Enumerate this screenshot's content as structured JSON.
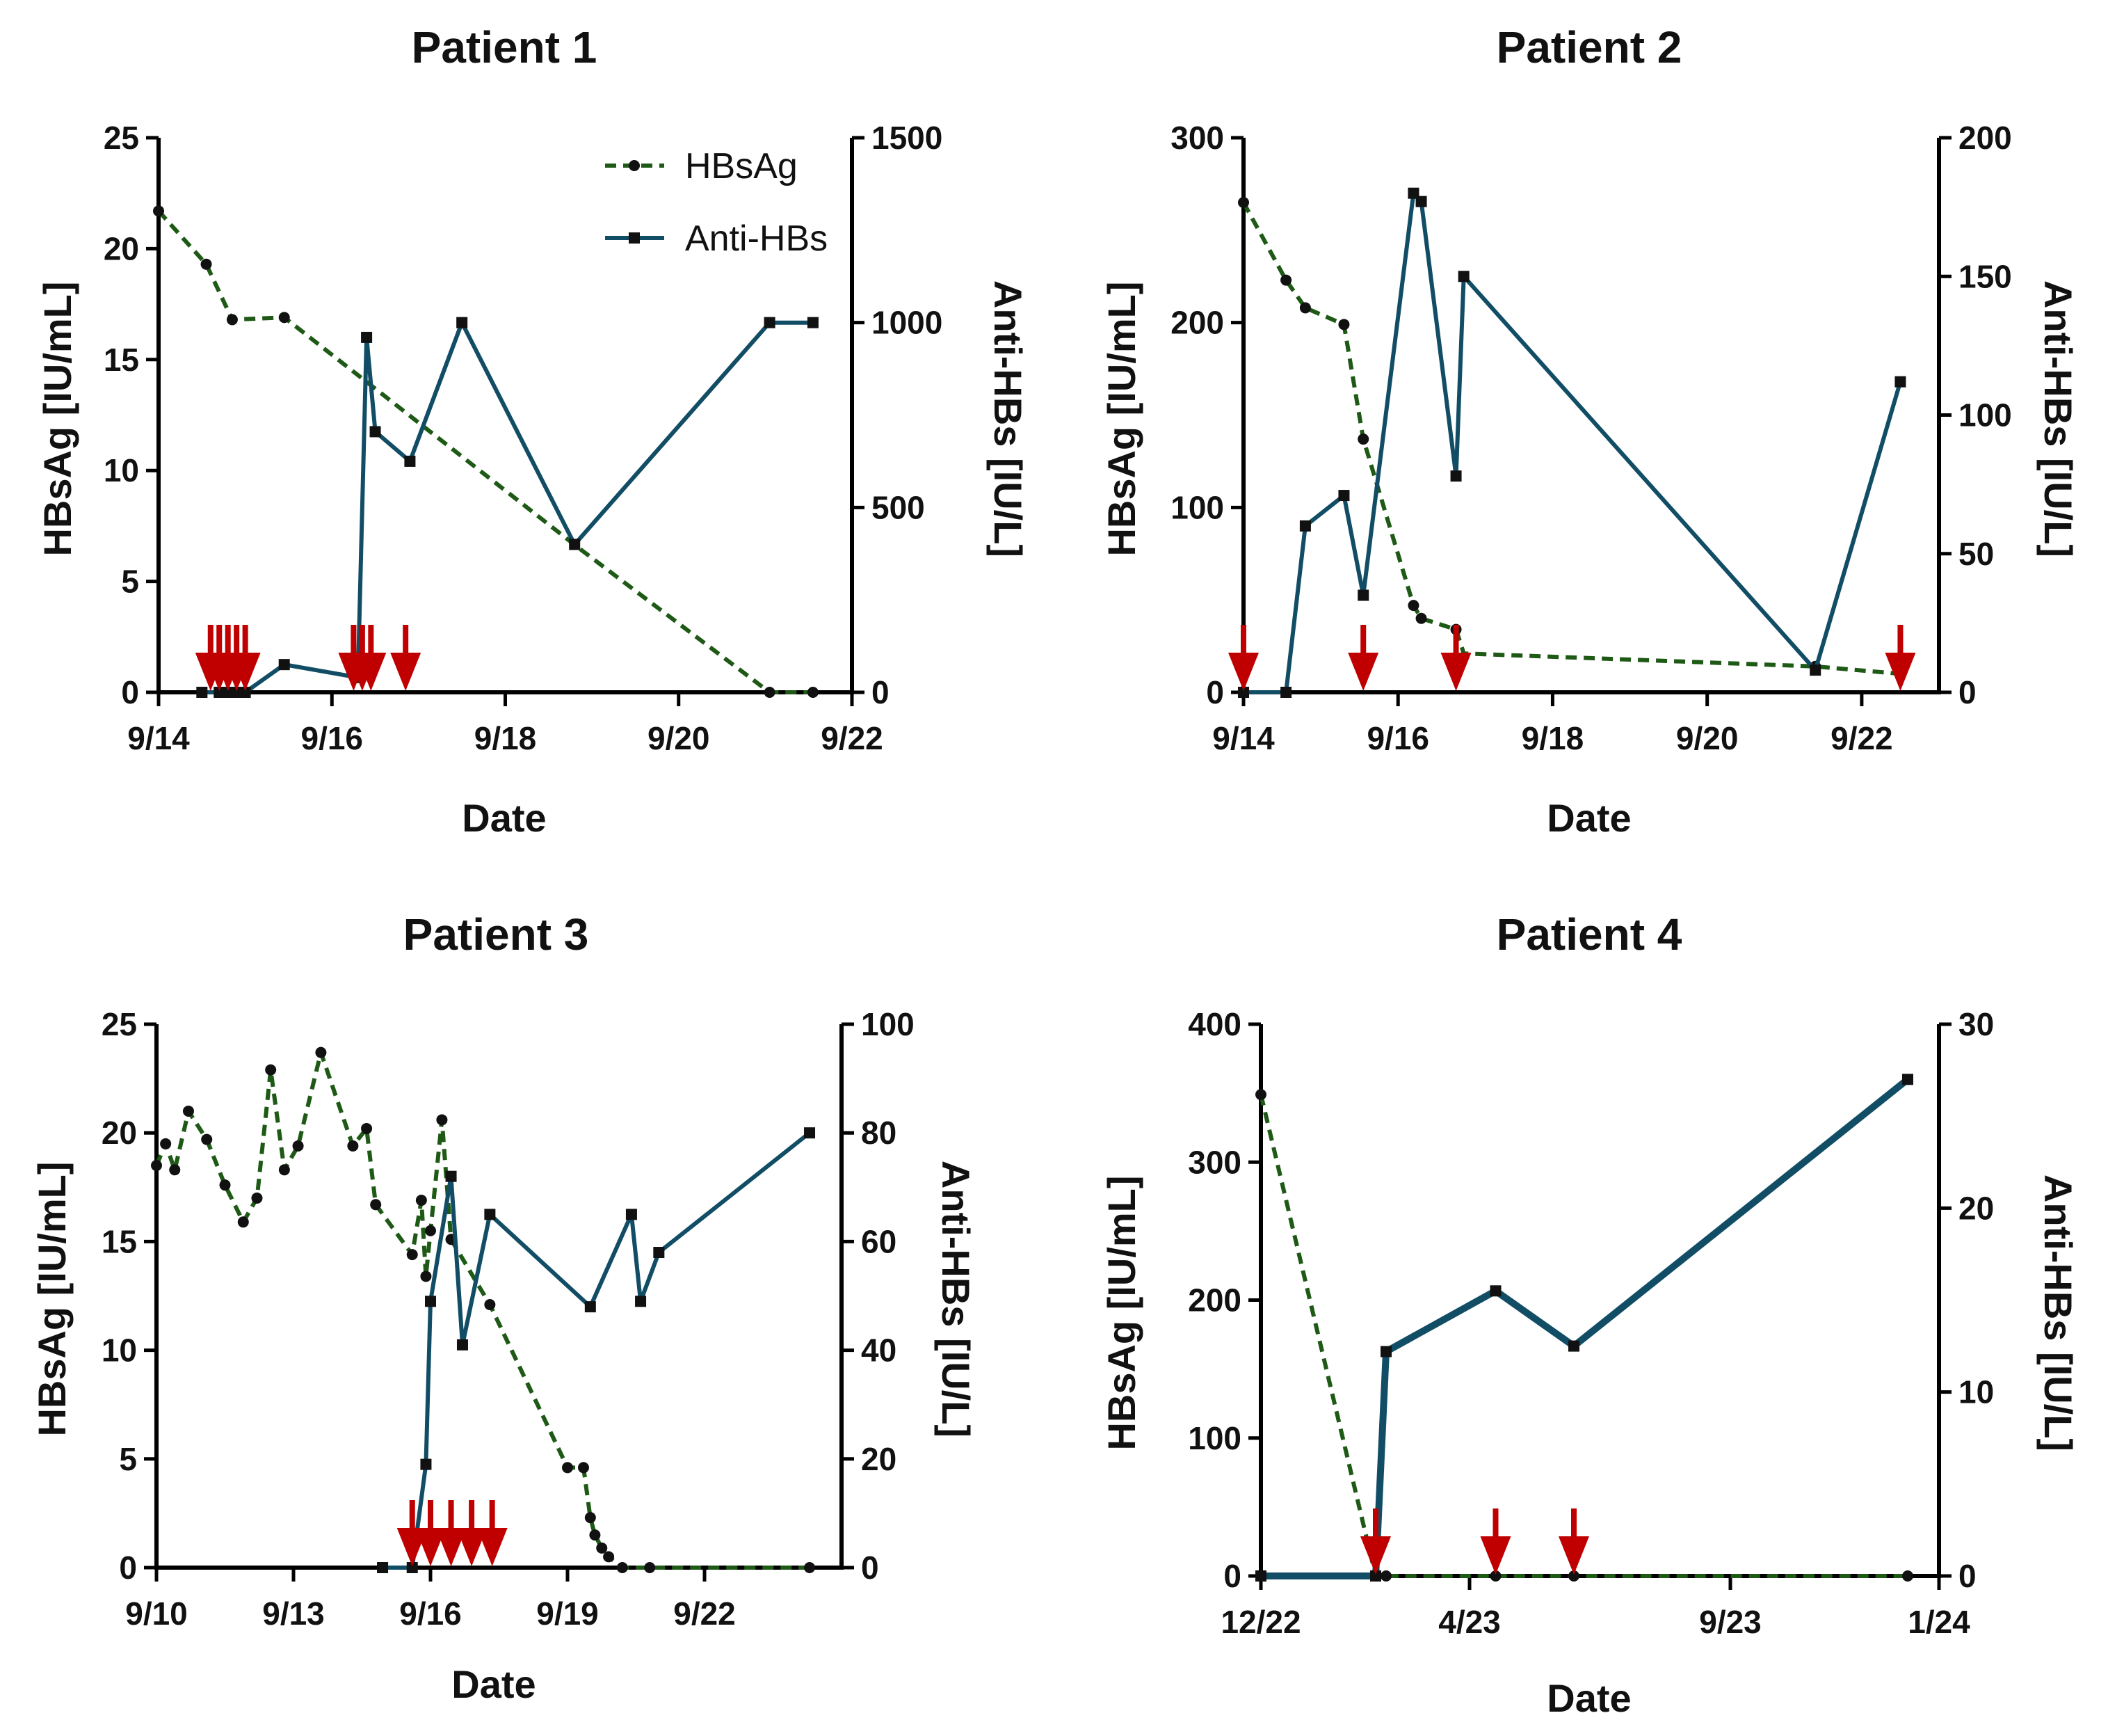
{
  "colors": {
    "hbsag": "#1e5a16",
    "antihbs": "#124d66",
    "arrow": "#c00000",
    "axis": "#000000"
  },
  "legend": {
    "hbsag_label": "HBsAg",
    "antihbs_label": "Anti-HBs"
  },
  "chart_data": [
    {
      "type": "line",
      "title": "Patient 1",
      "xlabel": "Date",
      "ylabel_left": "HBsAg [IU/mL]",
      "ylabel_right": "Anti-HBs [IU/L]",
      "x_unit": "day",
      "xlim": [
        0,
        8
      ],
      "xticks": [
        {
          "v": 0,
          "label": "9/14"
        },
        {
          "v": 2,
          "label": "9/16"
        },
        {
          "v": 4,
          "label": "9/18"
        },
        {
          "v": 6,
          "label": "9/20"
        },
        {
          "v": 8,
          "label": "9/22"
        }
      ],
      "ylim_left": [
        0,
        25
      ],
      "yticks_left": [
        0,
        5,
        10,
        15,
        20,
        25
      ],
      "ylim_right": [
        0,
        1500
      ],
      "yticks_right": [
        0,
        500,
        1000,
        1500
      ],
      "legend_shown": true,
      "legend_position": "top-right",
      "series": [
        {
          "name": "HBsAg",
          "axis": "left",
          "style": "dashed",
          "marker": "circle",
          "x": [
            0,
            0.55,
            0.85,
            1.45,
            7.05,
            7.55
          ],
          "y": [
            21.7,
            19.3,
            16.8,
            16.9,
            0,
            0
          ],
          "unmarked_x": [
            4.85
          ],
          "unmarked_y": [
            6.5
          ]
        },
        {
          "name": "Anti-HBs",
          "axis": "right",
          "style": "solid",
          "marker": "square",
          "x": [
            0.5,
            0.7,
            0.8,
            0.9,
            1.0,
            1.45,
            2.3,
            2.4,
            2.5,
            2.9,
            3.5,
            4.8,
            7.05,
            7.55
          ],
          "y": [
            0,
            0,
            0,
            0,
            0,
            75,
            40,
            960,
            705,
            625,
            1000,
            400,
            1000,
            1000
          ]
        }
      ],
      "arrows_x": [
        0.6,
        0.7,
        0.8,
        0.9,
        1.0,
        2.25,
        2.35,
        2.45,
        2.85
      ]
    },
    {
      "type": "line",
      "title": "Patient 2",
      "xlabel": "Date",
      "ylabel_left": "HBsAg [IU/mL]",
      "ylabel_right": "Anti-HBs [IU/L]",
      "x_unit": "day",
      "xlim": [
        0,
        9
      ],
      "xticks": [
        {
          "v": 0,
          "label": "9/14"
        },
        {
          "v": 2,
          "label": "9/16"
        },
        {
          "v": 4,
          "label": "9/18"
        },
        {
          "v": 6,
          "label": "9/20"
        },
        {
          "v": 8,
          "label": "9/22"
        }
      ],
      "ylim_left": [
        0,
        300
      ],
      "yticks_left": [
        0,
        100,
        200,
        300
      ],
      "ylim_right": [
        0,
        200
      ],
      "yticks_right": [
        0,
        50,
        100,
        150,
        200
      ],
      "legend_shown": false,
      "series": [
        {
          "name": "HBsAg",
          "axis": "left",
          "style": "dashed",
          "marker": "circle",
          "x": [
            0,
            0.55,
            0.8,
            1.3,
            1.55,
            2.2,
            2.3,
            2.75,
            7.4,
            8.5
          ],
          "y": [
            265,
            223,
            208,
            199,
            137,
            47,
            40,
            34,
            14,
            10
          ],
          "unmarked_x": [
            2.85
          ],
          "unmarked_y": [
            21
          ]
        },
        {
          "name": "Anti-HBs",
          "axis": "right",
          "style": "solid",
          "marker": "square",
          "x": [
            0,
            0.55,
            0.8,
            1.3,
            1.55,
            2.2,
            2.3,
            2.75,
            2.85,
            7.4,
            8.5
          ],
          "y": [
            0,
            0,
            60,
            71,
            35,
            180,
            177,
            78,
            150,
            8,
            112
          ]
        }
      ],
      "arrows_x": [
        0,
        1.55,
        2.75,
        8.5
      ]
    },
    {
      "type": "line",
      "title": "Patient 3",
      "xlabel": "Date",
      "ylabel_left": "HBsAg [IU/mL]",
      "ylabel_right": "Anti-HBs [IU/L]",
      "x_unit": "day",
      "xlim": [
        0,
        15
      ],
      "xticks": [
        {
          "v": 0,
          "label": "9/10"
        },
        {
          "v": 3,
          "label": "9/13"
        },
        {
          "v": 6,
          "label": "9/16"
        },
        {
          "v": 9,
          "label": "9/19"
        },
        {
          "v": 12,
          "label": "9/22"
        }
      ],
      "ylim_left": [
        0,
        25
      ],
      "yticks_left": [
        0,
        5,
        10,
        15,
        20,
        25
      ],
      "ylim_right": [
        0,
        100
      ],
      "yticks_right": [
        0,
        20,
        40,
        60,
        80,
        100
      ],
      "legend_shown": false,
      "series": [
        {
          "name": "HBsAg",
          "axis": "left",
          "style": "dashed",
          "marker": "circle",
          "x": [
            0,
            0.2,
            0.4,
            0.7,
            1.1,
            1.5,
            1.9,
            2.2,
            2.5,
            2.8,
            3.1,
            3.6,
            4.3,
            4.6,
            4.8,
            5.6,
            5.8,
            5.9,
            6.0,
            6.25,
            6.45,
            7.3,
            9.0,
            9.35,
            9.5,
            9.6,
            9.75,
            9.9,
            10.2,
            10.8,
            14.3
          ],
          "y": [
            18.5,
            19.5,
            18.3,
            21.0,
            19.7,
            17.6,
            15.9,
            17.0,
            22.9,
            18.3,
            19.4,
            23.7,
            19.4,
            20.2,
            16.7,
            14.4,
            16.9,
            13.4,
            15.5,
            20.6,
            15.1,
            12.1,
            4.6,
            4.6,
            2.3,
            1.5,
            0.9,
            0.5,
            0,
            0,
            0
          ]
        },
        {
          "name": "Anti-HBs",
          "axis": "right",
          "style": "solid",
          "marker": "square",
          "x": [
            4.95,
            5.6,
            5.9,
            6.0,
            6.45,
            6.7,
            7.3,
            9.5,
            10.4,
            10.6,
            11.0,
            14.3
          ],
          "y": [
            0,
            0,
            19,
            49,
            72,
            41,
            65,
            48,
            65,
            49,
            58,
            80
          ]
        }
      ],
      "arrows_x": [
        5.6,
        6.0,
        6.45,
        6.9,
        7.35
      ]
    },
    {
      "type": "line",
      "title": "Patient 4",
      "xlabel": "Date",
      "ylabel_left": "HBsAg [IU/mL]",
      "ylabel_right": "Anti-HBs [IU/L]",
      "x_unit": "month",
      "xlim": [
        0,
        13
      ],
      "xticks": [
        {
          "v": 0,
          "label": "12/22"
        },
        {
          "v": 4,
          "label": "4/23"
        },
        {
          "v": 9,
          "label": "9/23"
        },
        {
          "v": 13,
          "label": "1/24"
        }
      ],
      "ylim_left": [
        0,
        400
      ],
      "yticks_left": [
        0,
        100,
        200,
        300,
        400
      ],
      "ylim_right": [
        0,
        30
      ],
      "yticks_right": [
        0,
        10,
        20,
        30
      ],
      "legend_shown": false,
      "series": [
        {
          "name": "HBsAg",
          "axis": "left",
          "style": "dashed",
          "marker": "circle",
          "x": [
            0,
            2.2,
            2.4,
            4.5,
            6.0,
            12.4
          ],
          "y": [
            349,
            0,
            0,
            0,
            0,
            0
          ]
        },
        {
          "name": "Anti-HBs",
          "axis": "right",
          "style": "solid",
          "marker": "square",
          "x": [
            0,
            2.2,
            2.4,
            4.5,
            6.0,
            12.4
          ],
          "y": [
            0,
            0,
            12.2,
            15.5,
            12.5,
            27
          ]
        }
      ],
      "arrows_x": [
        2.2,
        4.5,
        6.0
      ]
    }
  ]
}
